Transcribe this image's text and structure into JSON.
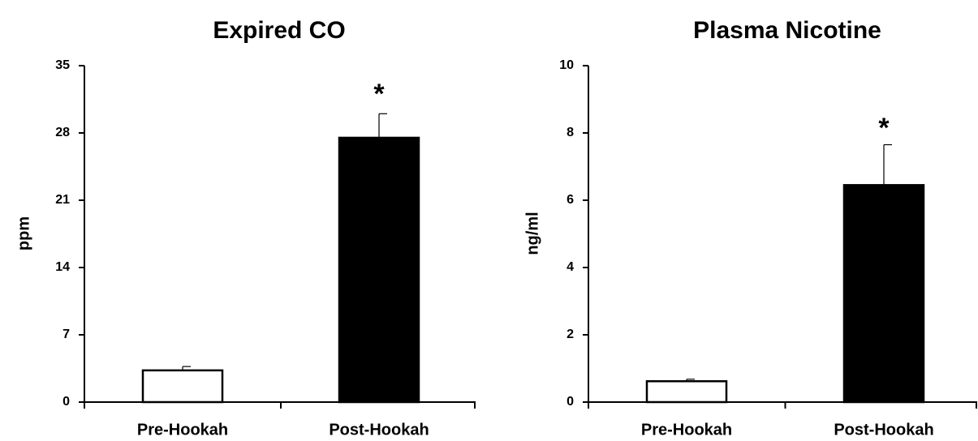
{
  "chart_data": [
    {
      "type": "bar",
      "title": "Expired CO",
      "xlabel": "",
      "ylabel": "ppm",
      "ylim": [
        0,
        35
      ],
      "yticks": [
        0,
        7,
        14,
        21,
        28,
        35
      ],
      "categories": [
        "Pre-Hookah",
        "Post-Hookah"
      ],
      "values": [
        3.3,
        27.5
      ],
      "error": [
        0.4,
        2.5
      ],
      "bar_colors": [
        "#ffffff",
        "#000000"
      ],
      "annotations": [
        "",
        "*"
      ],
      "grid": false,
      "legend": "none"
    },
    {
      "type": "bar",
      "title": "Plasma Nicotine",
      "xlabel": "",
      "ylabel": "ng/ml",
      "ylim": [
        0,
        10
      ],
      "yticks": [
        0,
        2,
        4,
        6,
        8,
        10
      ],
      "categories": [
        "Pre-Hookah",
        "Post-Hookah"
      ],
      "values": [
        0.62,
        6.45
      ],
      "error": [
        0.06,
        1.2
      ],
      "bar_colors": [
        "#ffffff",
        "#000000"
      ],
      "annotations": [
        "",
        "*"
      ],
      "grid": false,
      "legend": "none"
    }
  ]
}
